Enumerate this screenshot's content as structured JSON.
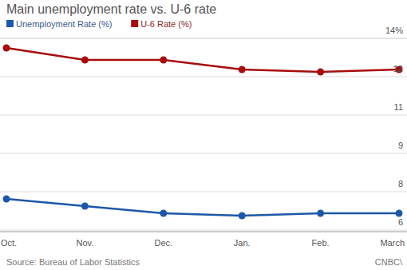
{
  "chart_data": {
    "type": "line",
    "title": "Main unemployment rate vs. U-6 rate",
    "source": "Source: Bureau of Labor Statistics",
    "credit": "CNBC\\",
    "categories": [
      "Oct.",
      "Nov.",
      "Dec.",
      "Jan.",
      "Feb.",
      "March"
    ],
    "series": [
      {
        "name": "Unemployment Rate (%)",
        "color": "#1d58a8",
        "marker": "circle",
        "values": [
          7.3,
          7.0,
          6.7,
          6.6,
          6.7,
          6.7
        ]
      },
      {
        "name": "U-6 Rate (%)",
        "color": "#a80d0d",
        "marker": "circle",
        "values": [
          13.6,
          13.1,
          13.1,
          12.7,
          12.6,
          12.7
        ]
      }
    ],
    "ylim": [
      6,
      14
    ],
    "yticks": [
      6,
      {
        "value": 7.6,
        "label": "8"
      },
      {
        "value": 9.2,
        "label": "9"
      },
      {
        "value": 10.8,
        "label": "11"
      },
      {
        "value": 12.4,
        "label": "12"
      },
      {
        "value": 14,
        "label": "14%"
      }
    ],
    "grid": true,
    "legend": "top-left"
  }
}
